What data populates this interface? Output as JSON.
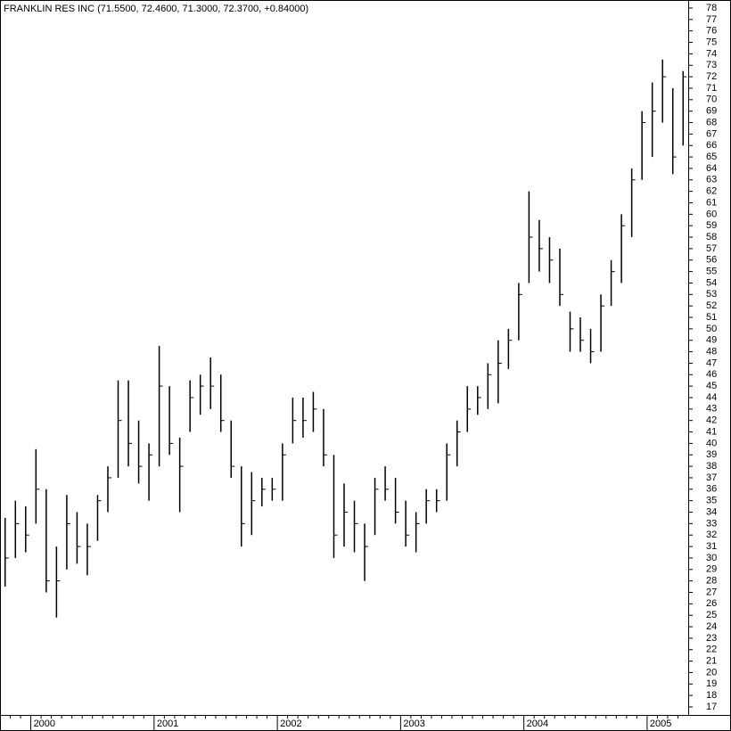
{
  "chart_data": {
    "type": "ohlc",
    "title": "FRANKLIN RES INC (71.5500, 72.4600, 71.3000, 72.3700, +0.84000)",
    "color": "#000000",
    "categories": [
      null,
      null,
      null,
      "2000",
      null,
      null,
      null,
      null,
      null,
      null,
      null,
      null,
      null,
      null,
      null,
      "2001",
      null,
      null,
      null,
      null,
      null,
      null,
      null,
      null,
      null,
      null,
      null,
      "2002",
      null,
      null,
      null,
      null,
      null,
      null,
      null,
      null,
      null,
      null,
      null,
      "2003",
      null,
      null,
      null,
      null,
      null,
      null,
      null,
      null,
      null,
      null,
      null,
      "2004",
      null,
      null,
      null,
      null,
      null,
      null,
      null,
      null,
      null,
      null,
      null,
      "2005",
      null,
      null,
      null
    ],
    "high": [
      33.5,
      35,
      34.5,
      39.5,
      36,
      31,
      35.5,
      34,
      33,
      35.5,
      38,
      45.5,
      45.5,
      42,
      40,
      48.5,
      45,
      40.5,
      45.5,
      46,
      47.5,
      46,
      42,
      38,
      37.5,
      37,
      37,
      40,
      44,
      44,
      44.5,
      43,
      39,
      36.5,
      35,
      33,
      37,
      38,
      37,
      35,
      34,
      36,
      36,
      40,
      42,
      45,
      45,
      47,
      49,
      50,
      54,
      62,
      59.5,
      58,
      57,
      51.5,
      51,
      50,
      53,
      56,
      60,
      64,
      69,
      71.5,
      73.5,
      71,
      72.5
    ],
    "low": [
      27.5,
      30,
      30.5,
      33,
      27,
      24.8,
      29,
      29.5,
      28.5,
      31.5,
      34,
      37,
      38,
      36.5,
      35,
      38,
      39,
      34,
      41,
      42.5,
      43,
      41,
      37,
      31,
      32,
      34.5,
      35,
      35,
      40,
      40.5,
      41,
      38,
      30,
      31,
      30.5,
      28,
      32,
      35,
      33,
      31,
      30.5,
      33,
      34,
      35,
      38,
      41,
      42.5,
      43,
      43.5,
      46.5,
      49,
      54,
      55,
      54,
      52,
      48,
      48,
      47,
      48,
      52,
      54,
      58,
      63,
      65,
      68,
      63.5,
      66
    ],
    "close": [
      30,
      33,
      32,
      36,
      28,
      28,
      33,
      31,
      31,
      35,
      37,
      42,
      40,
      38,
      39,
      45,
      40,
      38,
      44,
      45,
      45,
      42,
      38,
      33,
      35,
      36,
      36,
      39,
      42,
      42,
      43,
      39,
      32,
      34,
      33,
      31,
      36,
      36,
      34,
      32,
      33,
      35,
      35,
      39,
      41,
      43,
      44,
      46,
      47,
      49,
      53,
      58,
      57,
      56,
      53,
      50,
      49,
      48,
      52,
      55,
      59,
      63,
      68,
      69,
      72,
      65,
      72
    ],
    "ylim": [
      17,
      78
    ],
    "yticks": [
      17,
      18,
      19,
      20,
      21,
      22,
      23,
      24,
      25,
      26,
      27,
      28,
      29,
      30,
      31,
      32,
      33,
      34,
      35,
      36,
      37,
      38,
      39,
      40,
      41,
      42,
      43,
      44,
      45,
      46,
      47,
      48,
      49,
      50,
      51,
      52,
      53,
      54,
      55,
      56,
      57,
      58,
      59,
      60,
      61,
      62,
      63,
      64,
      65,
      66,
      67,
      68,
      69,
      70,
      71,
      72,
      73,
      74,
      75,
      76,
      77,
      78
    ]
  }
}
